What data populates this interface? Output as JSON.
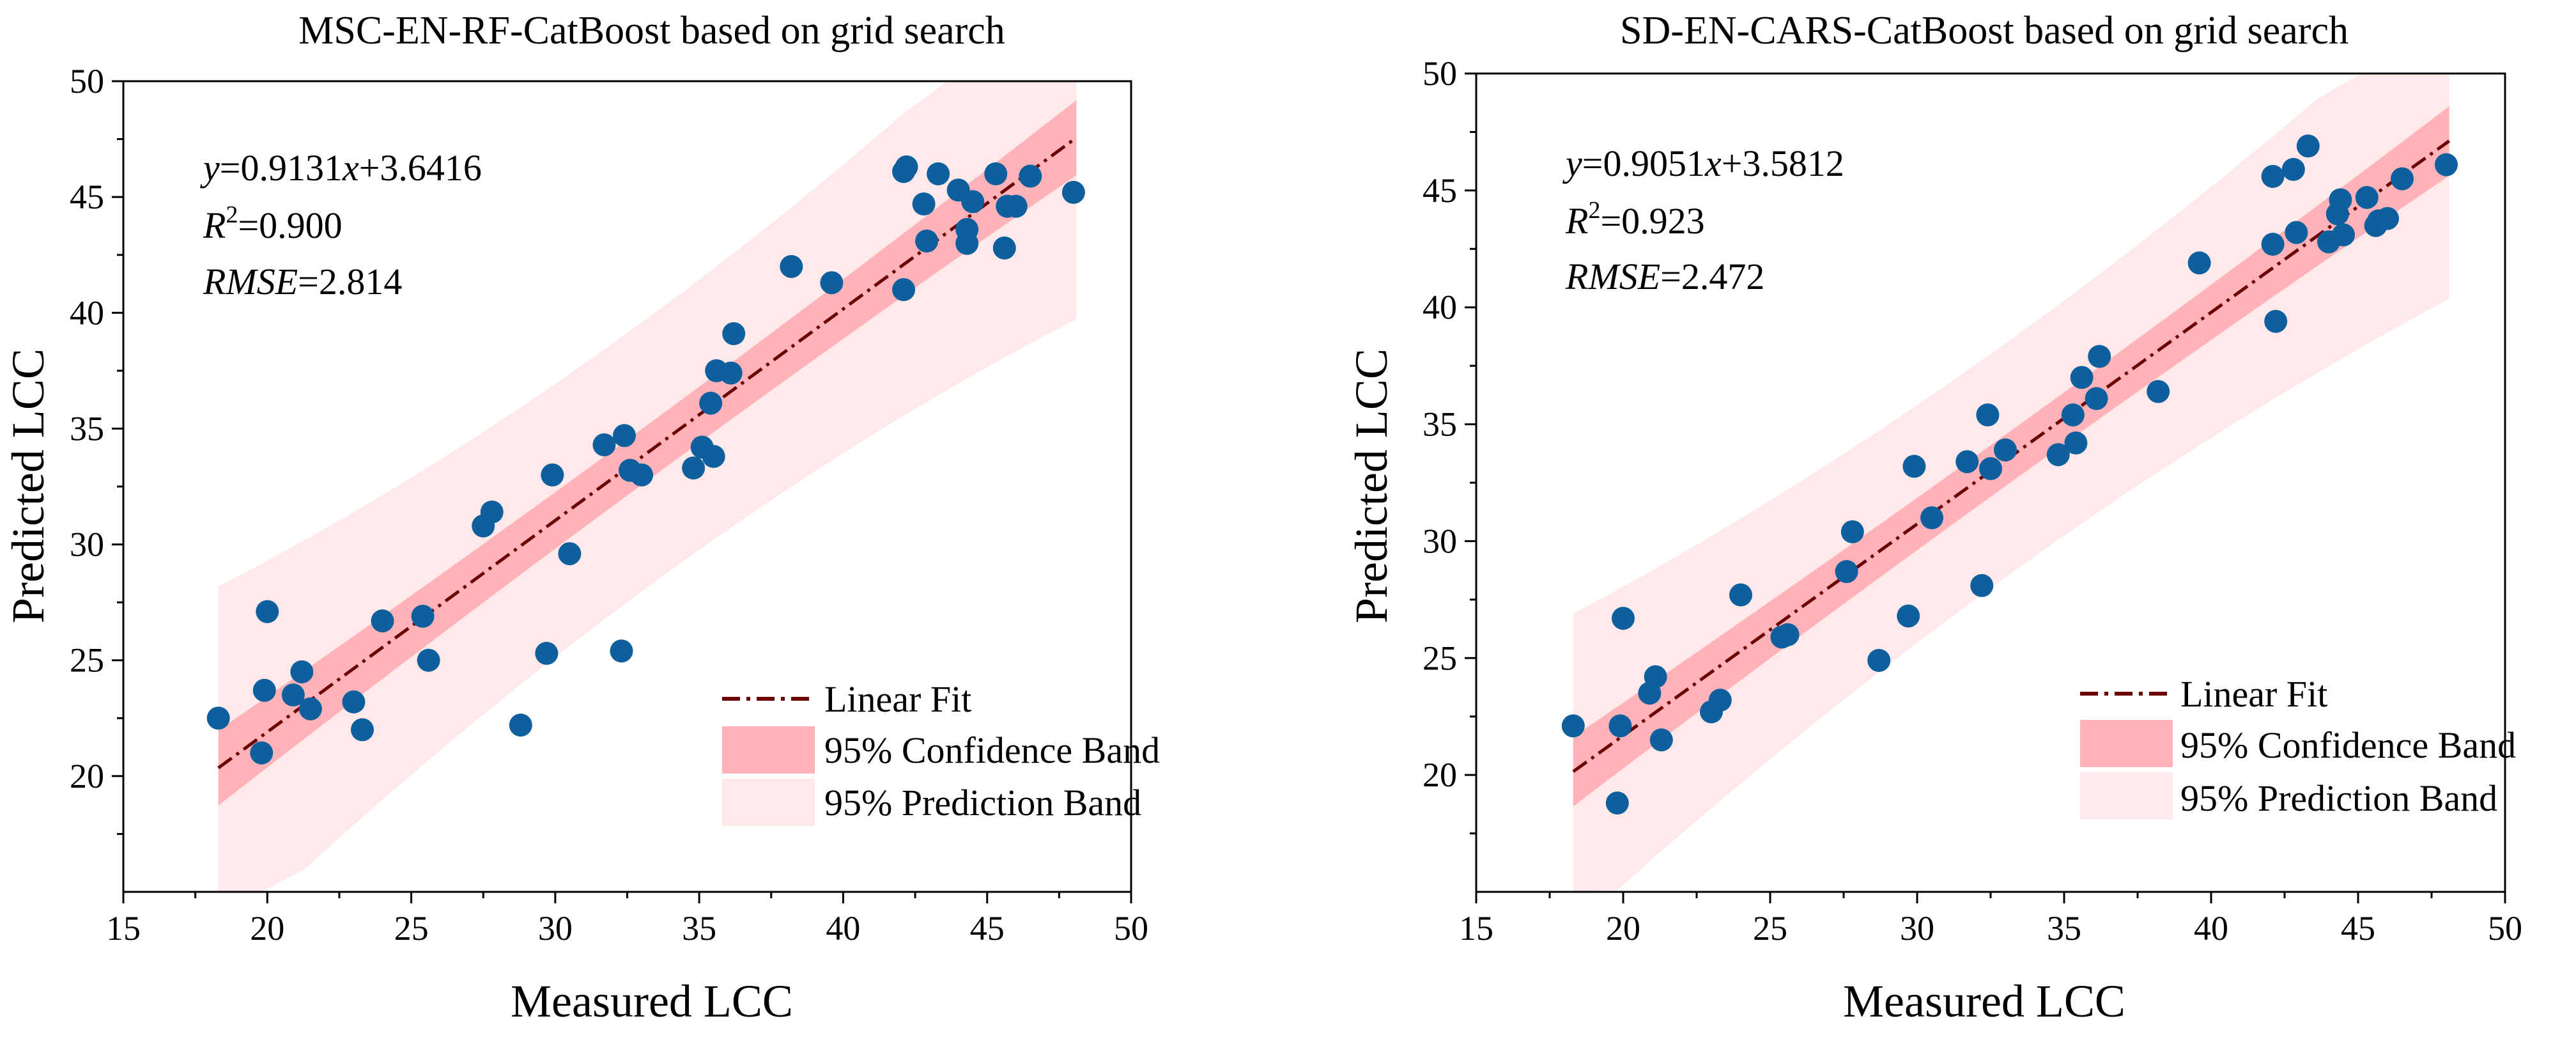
{
  "chart_data": [
    {
      "type": "scatter",
      "title": "MSC-EN-RF-CatBoost based on grid search",
      "xlabel": "Measured LCC",
      "ylabel": "Predicted LCC",
      "xlim": [
        15,
        50
      ],
      "ylim": [
        15,
        50
      ],
      "xticks": [
        "15",
        "20",
        "25",
        "30",
        "35",
        "40",
        "45",
        "50"
      ],
      "yticks": [
        "20",
        "25",
        "30",
        "35",
        "40",
        "45",
        "50"
      ],
      "fit": {
        "slope": 0.9131,
        "intercept": 3.6416,
        "x_range": [
          18.3,
          48.1
        ]
      },
      "bands": {
        "confidence_halfwidth": 1.2,
        "prediction_halfwidth": 5.8
      },
      "annotation": {
        "eq_y": "y",
        "eq_mid": "=0.9131",
        "eq_x": "x",
        "eq_end": "+3.6416",
        "r2_r": "R",
        "r2_sup": "2",
        "r2_val": "=0.900",
        "rmse_label": "RMSE",
        "rmse_val": "=2.814"
      },
      "legend": {
        "fit": "Linear Fit",
        "conf": "95% Confidence Band",
        "pred": "95% Prediction Band"
      },
      "points": [
        [
          18.3,
          22.5
        ],
        [
          19.8,
          21.0
        ],
        [
          20.0,
          27.1
        ],
        [
          19.9,
          23.7
        ],
        [
          20.9,
          23.5
        ],
        [
          21.2,
          24.5
        ],
        [
          21.5,
          22.9
        ],
        [
          23.0,
          23.2
        ],
        [
          23.3,
          22.0
        ],
        [
          24.0,
          26.7
        ],
        [
          25.4,
          26.9
        ],
        [
          25.6,
          25.0
        ],
        [
          27.5,
          30.8
        ],
        [
          27.8,
          31.4
        ],
        [
          28.8,
          22.2
        ],
        [
          29.7,
          25.3
        ],
        [
          29.9,
          33.0
        ],
        [
          30.5,
          29.6
        ],
        [
          31.7,
          34.3
        ],
        [
          32.3,
          25.4
        ],
        [
          32.4,
          34.7
        ],
        [
          32.6,
          33.2
        ],
        [
          33.0,
          33.0
        ],
        [
          34.8,
          33.3
        ],
        [
          35.1,
          34.2
        ],
        [
          35.4,
          36.1
        ],
        [
          35.5,
          33.8
        ],
        [
          35.6,
          37.5
        ],
        [
          36.1,
          37.4
        ],
        [
          36.2,
          39.1
        ],
        [
          38.2,
          42.0
        ],
        [
          39.6,
          41.3
        ],
        [
          42.1,
          41.0
        ],
        [
          42.1,
          46.1
        ],
        [
          42.2,
          46.3
        ],
        [
          42.8,
          44.7
        ],
        [
          42.9,
          43.1
        ],
        [
          43.3,
          46.0
        ],
        [
          44.0,
          45.3
        ],
        [
          44.3,
          43.6
        ],
        [
          44.3,
          43.0
        ],
        [
          44.5,
          44.8
        ],
        [
          45.3,
          46.0
        ],
        [
          45.6,
          42.8
        ],
        [
          45.7,
          44.6
        ],
        [
          46.0,
          44.6
        ],
        [
          46.5,
          45.9
        ],
        [
          48.0,
          45.2
        ]
      ]
    },
    {
      "type": "scatter",
      "title": "SD-EN-CARS-CatBoost based on grid search",
      "xlabel": "Measured LCC",
      "ylabel": "Predicted LCC",
      "xlim": [
        15,
        50
      ],
      "ylim": [
        15,
        50
      ],
      "xticks": [
        "15",
        "20",
        "25",
        "30",
        "35",
        "40",
        "45",
        "50"
      ],
      "yticks": [
        "20",
        "25",
        "30",
        "35",
        "40",
        "45",
        "50"
      ],
      "fit": {
        "slope": 0.9051,
        "intercept": 3.5812,
        "x_range": [
          18.3,
          48.1
        ]
      },
      "bands": {
        "confidence_halfwidth": 1.1,
        "prediction_halfwidth": 5.0
      },
      "annotation": {
        "eq_y": "y",
        "eq_mid": "=0.9051",
        "eq_x": "x",
        "eq_end": "+3.5812",
        "r2_r": "R",
        "r2_sup": "2",
        "r2_val": "=0.923",
        "rmse_label": "RMSE",
        "rmse_val": "=2.472"
      },
      "legend": {
        "fit": "Linear Fit",
        "conf": "95% Confidence Band",
        "pred": "95% Prediction Band"
      },
      "points": [
        [
          18.3,
          22.1
        ],
        [
          19.8,
          18.8
        ],
        [
          19.9,
          22.1
        ],
        [
          20.0,
          26.7
        ],
        [
          20.9,
          23.5
        ],
        [
          21.1,
          24.2
        ],
        [
          21.3,
          21.5
        ],
        [
          23.0,
          22.7
        ],
        [
          23.3,
          23.2
        ],
        [
          24.0,
          27.7
        ],
        [
          25.4,
          25.9
        ],
        [
          25.6,
          26.0
        ],
        [
          27.6,
          28.7
        ],
        [
          27.8,
          30.4
        ],
        [
          28.7,
          24.9
        ],
        [
          29.7,
          26.8
        ],
        [
          29.9,
          33.2
        ],
        [
          30.5,
          31.0
        ],
        [
          31.7,
          33.4
        ],
        [
          32.2,
          28.1
        ],
        [
          32.4,
          35.4
        ],
        [
          32.5,
          33.1
        ],
        [
          33.0,
          33.9
        ],
        [
          34.8,
          33.7
        ],
        [
          35.3,
          35.4
        ],
        [
          35.4,
          34.2
        ],
        [
          35.6,
          37.0
        ],
        [
          36.1,
          36.1
        ],
        [
          36.2,
          37.9
        ],
        [
          38.2,
          36.4
        ],
        [
          39.6,
          41.9
        ],
        [
          42.1,
          45.6
        ],
        [
          42.1,
          42.7
        ],
        [
          42.2,
          39.4
        ],
        [
          42.8,
          45.9
        ],
        [
          42.9,
          43.2
        ],
        [
          43.3,
          46.9
        ],
        [
          44.0,
          42.8
        ],
        [
          44.3,
          44.0
        ],
        [
          44.4,
          44.6
        ],
        [
          44.5,
          43.1
        ],
        [
          45.3,
          44.7
        ],
        [
          45.6,
          43.5
        ],
        [
          45.7,
          43.7
        ],
        [
          46.0,
          43.8
        ],
        [
          46.5,
          45.5
        ],
        [
          48.0,
          46.1
        ]
      ]
    }
  ]
}
